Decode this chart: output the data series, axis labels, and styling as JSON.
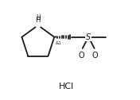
{
  "bg_color": "#ffffff",
  "line_color": "#1a1a1a",
  "line_width": 1.3,
  "title_text": "HCl",
  "title_fontsize": 8,
  "stereo_label": "&1",
  "s_label": "S",
  "o1_label": "O",
  "o2_label": "O",
  "figsize": [
    1.76,
    1.26
  ],
  "dpi": 100,
  "xlim": [
    0,
    11
  ],
  "ylim": [
    0,
    9
  ]
}
